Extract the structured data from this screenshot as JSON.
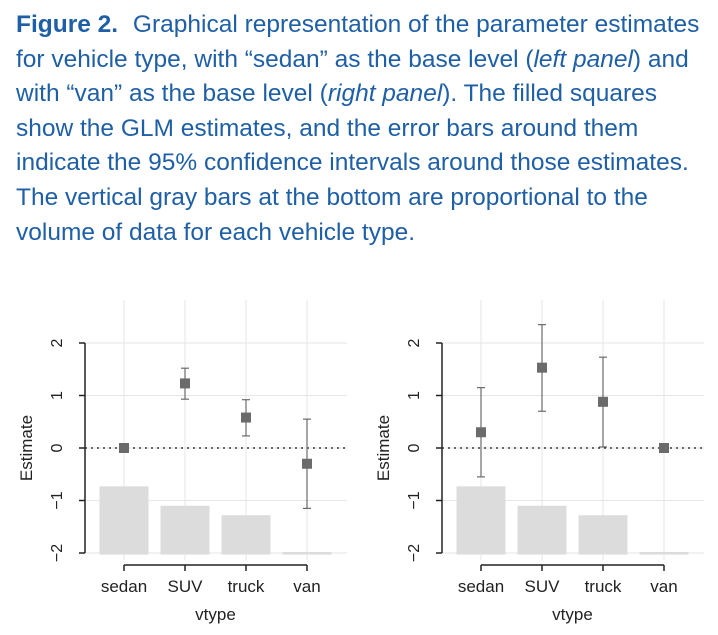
{
  "caption": {
    "label": "Figure 2.",
    "t1": "Graphical representation of the parameter estimates for vehicle type, with “sedan” as the base level (",
    "i1": "left panel",
    "t2": ") and with “van” as the base level (",
    "i2": "right panel",
    "t3": "). The filled squares show the GLM estimates, and the error bars around them indicate the 95% confidence intervals around those estimates. The vertical gray bars at the bottom are proportional to the volume of data for each vehicle type."
  },
  "chart_data": [
    {
      "type": "scatter",
      "panel": "left",
      "categories": [
        "sedan",
        "SUV",
        "truck",
        "van"
      ],
      "estimates": [
        0,
        1.23,
        0.58,
        -0.3
      ],
      "ci_lower": [
        0,
        0.93,
        0.23,
        -1.15
      ],
      "ci_upper": [
        0,
        1.52,
        0.92,
        0.55
      ],
      "volume_bars_top": [
        -0.73,
        -1.1,
        -1.28,
        -1.98
      ],
      "xlabel": "vtype",
      "ylabel": "Estimate",
      "yticks": [
        -2,
        -1,
        0,
        1,
        2
      ],
      "ylim": [
        -2.1,
        2.6
      ],
      "reference_line": 0,
      "grid": true
    },
    {
      "type": "scatter",
      "panel": "right",
      "categories": [
        "sedan",
        "SUV",
        "truck",
        "van"
      ],
      "estimates": [
        0.3,
        1.53,
        0.88,
        0
      ],
      "ci_lower": [
        -0.55,
        0.7,
        0.02,
        0
      ],
      "ci_upper": [
        1.15,
        2.35,
        1.73,
        0
      ],
      "volume_bars_top": [
        -0.73,
        -1.1,
        -1.28,
        -1.98
      ],
      "xlabel": "vtype",
      "ylabel": "Estimate",
      "yticks": [
        -2,
        -1,
        0,
        1,
        2
      ],
      "ylim": [
        -2.1,
        2.6
      ],
      "reference_line": 0,
      "grid": true
    }
  ],
  "colors": {
    "caption": "#1f5fa6",
    "marker": "#6b6b6b",
    "volume_bar": "#dcdcdc",
    "grid": "#e6e6e6",
    "axis": "#222222"
  }
}
